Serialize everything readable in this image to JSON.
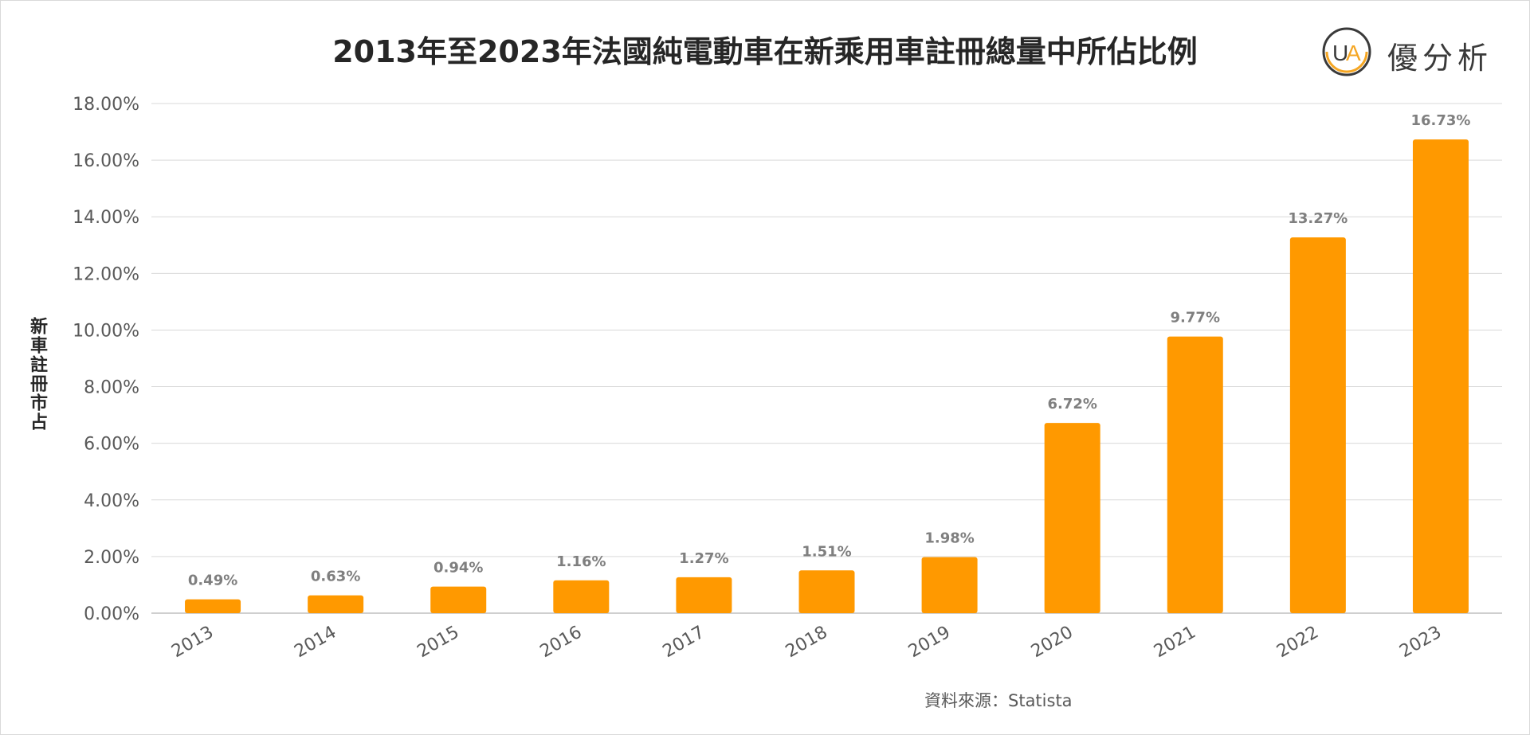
{
  "chart_data": {
    "type": "bar",
    "title": "2013年至2023年法國純電動車在新乘用車註冊總量中所佔比例",
    "xlabel": "",
    "ylabel": "新車註冊市占",
    "categories": [
      "2013",
      "2014",
      "2015",
      "2016",
      "2017",
      "2018",
      "2019",
      "2020",
      "2021",
      "2022",
      "2023"
    ],
    "values": [
      0.49,
      0.63,
      0.94,
      1.16,
      1.27,
      1.51,
      1.98,
      6.72,
      9.77,
      13.27,
      16.73
    ],
    "data_labels": [
      "0.49%",
      "0.63%",
      "0.94%",
      "1.16%",
      "1.27%",
      "1.51%",
      "1.98%",
      "6.72%",
      "9.77%",
      "13.27%",
      "16.73%"
    ],
    "ylim": [
      0,
      18
    ],
    "yticks": [
      "0.00%",
      "2.00%",
      "4.00%",
      "6.00%",
      "8.00%",
      "10.00%",
      "12.00%",
      "14.00%",
      "16.00%",
      "18.00%"
    ],
    "grid": true,
    "bar_color": "#FF9900",
    "label_color": "#7F7F7F"
  },
  "logo": {
    "text": "優分析",
    "mark": "UA"
  },
  "source": "資料來源：Statista"
}
